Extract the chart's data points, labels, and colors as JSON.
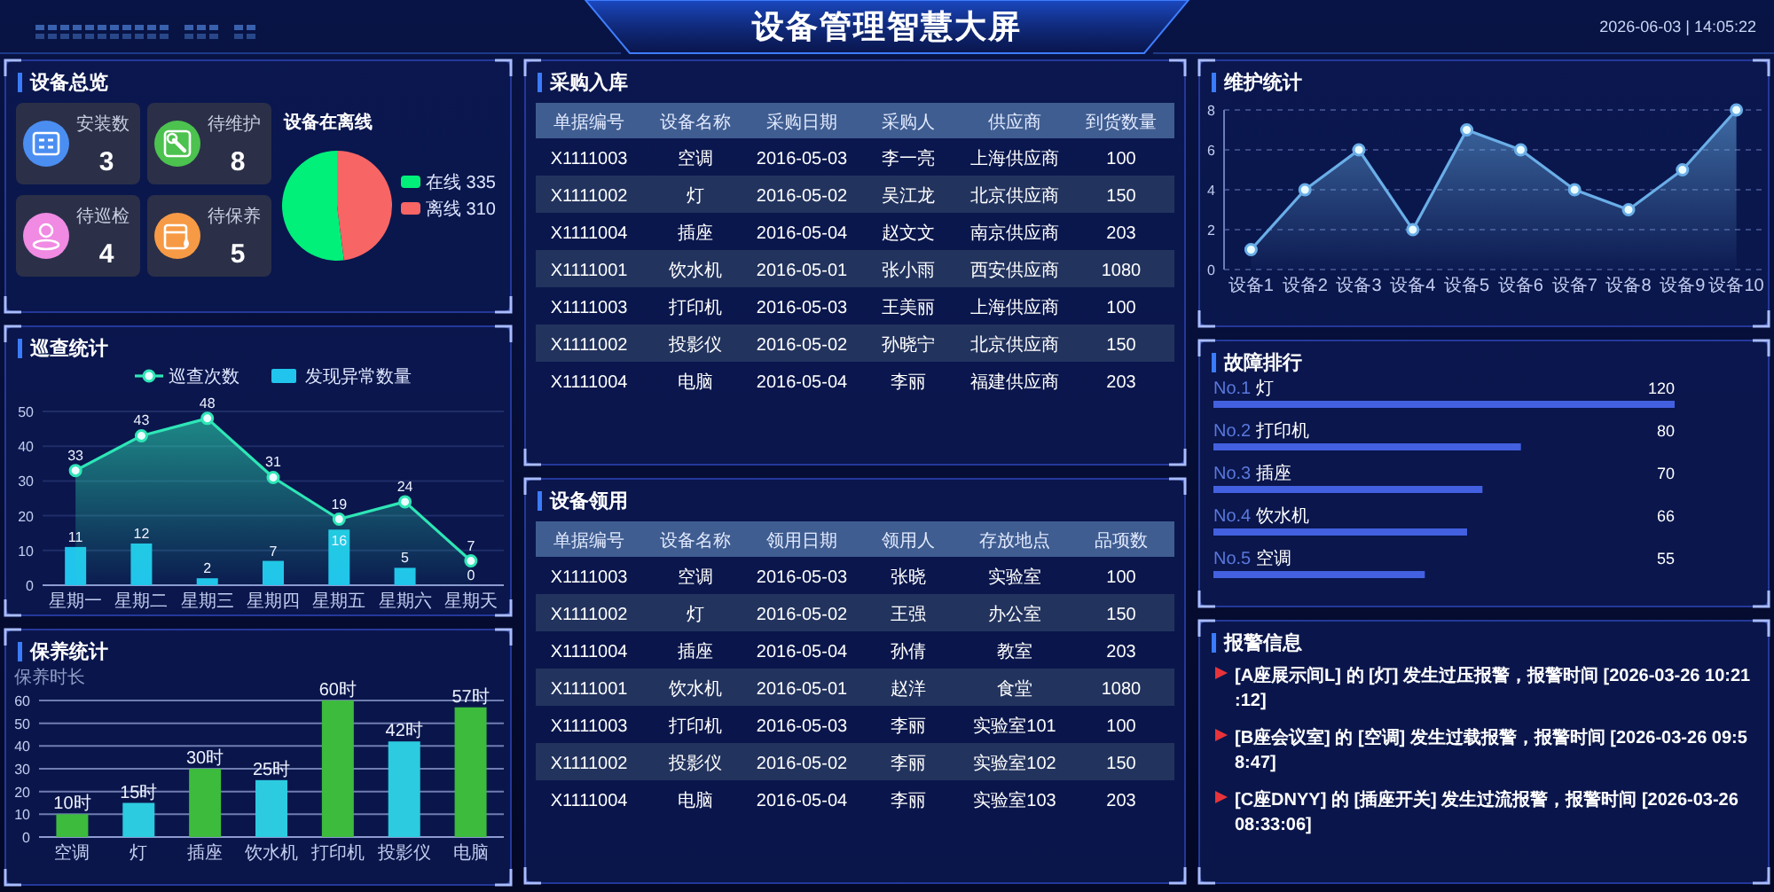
{
  "chart_data": [
    {
      "type": "other",
      "title": "设备管理智慧大屏",
      "annotations": [
        "2026-06-03 | 14:05:22"
      ]
    },
    {
      "type": "other",
      "title": "设备总览",
      "categories": [
        "安装数",
        "待维护",
        "待巡检",
        "待保养"
      ],
      "annotations": [
        "3",
        "8",
        "4",
        "5"
      ]
    },
    {
      "type": "pie",
      "title": "设备在离线",
      "categories": [
        "在线 335",
        "离线 310"
      ],
      "values": [
        52,
        48
      ],
      "colors": [
        "#00f07a",
        "#f76565"
      ],
      "legend": "right"
    },
    {
      "type": "other",
      "title": "采购入库",
      "categories": [
        "单据编号",
        "设备名称",
        "采购日期",
        "采购人",
        "供应商",
        "到货数量"
      ],
      "cell_labels": [
        [
          "X1111003",
          "空调",
          "2016-05-03",
          "李一亮",
          "上海供应商",
          "100"
        ],
        [
          "X1111002",
          "灯",
          "2016-05-02",
          "吴江龙",
          "北京供应商",
          "150"
        ],
        [
          "X1111004",
          "插座",
          "2016-05-04",
          "赵文文",
          "南京供应商",
          "203"
        ],
        [
          "X1111001",
          "饮水机",
          "2016-05-01",
          "张小雨",
          "西安供应商",
          "1080"
        ],
        [
          "X1111003",
          "打印机",
          "2016-05-03",
          "王美丽",
          "上海供应商",
          "100"
        ],
        [
          "X1111002",
          "投影仪",
          "2016-05-02",
          "孙晓宁",
          "北京供应商",
          "150"
        ],
        [
          "X1111004",
          "电脑",
          "2016-05-04",
          "李丽",
          "福建供应商",
          "203"
        ]
      ]
    },
    {
      "type": "area",
      "title": "维护统计",
      "categories": [
        "设备1",
        "设备2",
        "设备3",
        "设备4",
        "设备5",
        "设备6",
        "设备7",
        "设备8",
        "设备9",
        "设备10"
      ],
      "values": [
        1,
        4,
        6,
        2,
        7,
        6,
        4,
        3,
        5,
        8
      ],
      "color": "#6aaee8",
      "ylim": [
        0,
        8
      ],
      "yticks": [
        0,
        2,
        4,
        6,
        8
      ],
      "grid": "y",
      "marker": "circle"
    },
    {
      "type": "bar",
      "title": "巡查统计",
      "categories": [
        "星期一",
        "星期二",
        "星期三",
        "星期四",
        "星期五",
        "星期六",
        "星期天"
      ],
      "series": [
        {
          "name": "巡查次数",
          "type": "area",
          "color": "#2ee6b6",
          "values": [
            33,
            43,
            48,
            31,
            19,
            24,
            7
          ]
        },
        {
          "name": "发现异常数量",
          "type": "bar",
          "color": "#20c4ec",
          "values": [
            11,
            12,
            2,
            7,
            16,
            5,
            0
          ]
        }
      ],
      "ylim": [
        0,
        50
      ],
      "yticks": [
        0,
        10,
        20,
        30,
        40,
        50
      ],
      "grid": "y",
      "legend": "top",
      "data_labels": true,
      "marker": "circle"
    },
    {
      "type": "bar",
      "orientation": "horizontal",
      "title": "故障排行",
      "categories": [
        "No.1 灯",
        "No.2 打印机",
        "No.3 插座",
        "No.4 饮水机",
        "No.5 空调"
      ],
      "values": [
        120,
        80,
        70,
        66,
        55
      ],
      "color": "#4260e0",
      "xlim": [
        0,
        120
      ],
      "data_labels": true
    },
    {
      "type": "other",
      "title": "设备领用",
      "categories": [
        "单据编号",
        "设备名称",
        "领用日期",
        "领用人",
        "存放地点",
        "品项数"
      ],
      "cell_labels": [
        [
          "X1111003",
          "空调",
          "2016-05-03",
          "张晓",
          "实验室",
          "100"
        ],
        [
          "X1111002",
          "灯",
          "2016-05-02",
          "王强",
          "办公室",
          "150"
        ],
        [
          "X1111004",
          "插座",
          "2016-05-04",
          "孙倩",
          "教室",
          "203"
        ],
        [
          "X1111001",
          "饮水机",
          "2016-05-01",
          "赵洋",
          "食堂",
          "1080"
        ],
        [
          "X1111003",
          "打印机",
          "2016-05-03",
          "李丽",
          "实验室101",
          "100"
        ],
        [
          "X1111002",
          "投影仪",
          "2016-05-02",
          "李丽",
          "实验室102",
          "150"
        ],
        [
          "X1111004",
          "电脑",
          "2016-05-04",
          "李丽",
          "实验室103",
          "203"
        ]
      ]
    },
    {
      "type": "bar",
      "title": "保养统计",
      "ylabel": "保养时长",
      "categories": [
        "空调",
        "灯",
        "插座",
        "饮水机",
        "打印机",
        "投影仪",
        "电脑"
      ],
      "values": [
        10,
        15,
        30,
        25,
        60,
        42,
        57
      ],
      "colors": [
        "#3dbb3d",
        "#2ccbe0",
        "#3dbb3d",
        "#2ccbe0",
        "#3dbb3d",
        "#2ccbe0",
        "#3dbb3d"
      ],
      "value_labels": [
        "10时",
        "15时",
        "30时",
        "25时",
        "60时",
        "42时",
        "57时"
      ],
      "ylim": [
        0,
        60
      ],
      "yticks": [
        0,
        10,
        20,
        30,
        40,
        50,
        60
      ],
      "grid": "y"
    },
    {
      "type": "other",
      "title": "报警信息",
      "annotations": [
        "[A座展示间L] 的 [灯] 发生过压报警，报警时间 [2026-03-26 10:21:12]",
        "[B座会议室] 的 [空调] 发生过载报警，报警时间 [2026-03-26 09:58:47]",
        "[C座DNYY] 的 [插座开关] 发生过流报警，报警时间 [2026-03-26 08:33:06]"
      ]
    }
  ]
}
